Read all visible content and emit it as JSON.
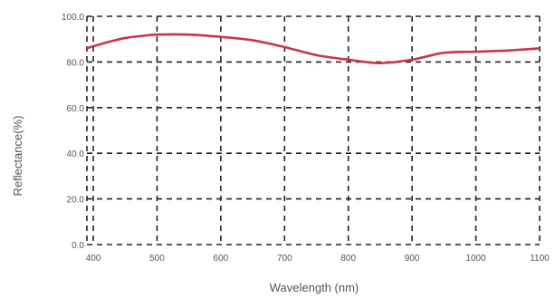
{
  "chart_data": {
    "type": "line",
    "xlabel": "Wavelength (nm)",
    "ylabel": "Reflectance(%)",
    "xlim": [
      390,
      1100
    ],
    "ylim": [
      0,
      100
    ],
    "x_ticks": [
      400,
      500,
      600,
      700,
      800,
      900,
      1000,
      1100
    ],
    "x_tick_labels": [
      "400",
      "500",
      "600",
      "700",
      "800",
      "900",
      "1000",
      "1100"
    ],
    "y_ticks": [
      0,
      20,
      40,
      60,
      80,
      100
    ],
    "y_tick_labels": [
      "0.0",
      "20.0",
      "40.0",
      "60.0",
      "80.0",
      "100.0"
    ],
    "grid": true,
    "series": [
      {
        "color": "#c9354a",
        "x": [
          390,
          420,
          450,
          480,
          500,
          550,
          600,
          650,
          700,
          750,
          800,
          850,
          900,
          950,
          1000,
          1050,
          1100
        ],
        "y": [
          86,
          88.5,
          90.5,
          91.5,
          92,
          92,
          91,
          89.5,
          86.5,
          83,
          81,
          79.5,
          81,
          84,
          84.5,
          85,
          86
        ]
      }
    ]
  }
}
